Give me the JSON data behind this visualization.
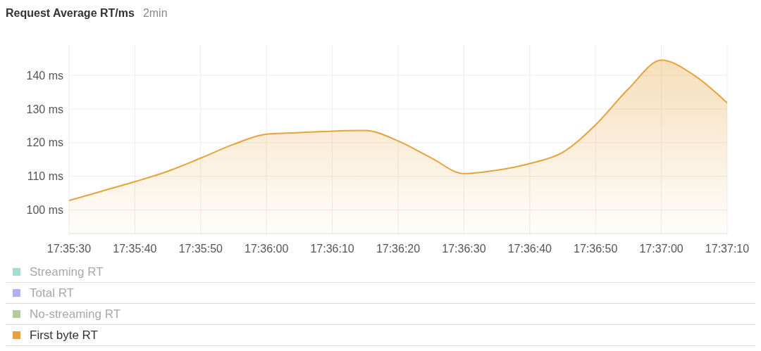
{
  "chart_data": {
    "type": "area",
    "title": "Request Average RT/ms",
    "subtitle": "2min",
    "x": [
      17.591667,
      17.593056,
      17.594444,
      17.595833,
      17.597222,
      17.598611,
      17.6,
      17.601389,
      17.602778,
      17.604167,
      17.605556,
      17.606944,
      17.608333,
      17.609722,
      17.611111,
      17.6125,
      17.613889,
      17.615278,
      17.616667,
      17.618056,
      17.619444
    ],
    "series": [
      {
        "name": "Streaming RT",
        "color": "#a6dccf",
        "values": [
          null,
          null,
          null,
          null,
          null,
          null,
          null,
          null,
          null,
          null,
          null,
          null,
          null,
          null,
          null,
          null,
          null,
          null,
          null,
          null,
          null
        ]
      },
      {
        "name": "Total RT",
        "color": "#b0b0f2",
        "values": [
          null,
          null,
          null,
          null,
          null,
          null,
          null,
          null,
          null,
          null,
          null,
          null,
          null,
          null,
          null,
          null,
          null,
          null,
          null,
          null,
          null
        ]
      },
      {
        "name": "No-streaming RT",
        "color": "#b3cd98",
        "values": [
          null,
          null,
          null,
          null,
          null,
          null,
          null,
          null,
          null,
          null,
          null,
          null,
          null,
          null,
          null,
          null,
          null,
          null,
          null,
          null,
          null
        ]
      },
      {
        "name": "First byte RT",
        "color": "#e6a23c",
        "values": [
          102.8,
          105.6,
          108.4,
          111.5,
          115.4,
          119.5,
          122.5,
          123.0,
          123.4,
          123.6,
          120.5,
          115.5,
          110.8,
          111.8,
          113.8,
          117.1,
          125.3,
          136.0,
          144.5,
          140.0,
          131.8
        ]
      }
    ],
    "xlim": [
      17.591667,
      17.619444
    ],
    "xticks": [
      {
        "value": 17.591667,
        "label": "17:35:30"
      },
      {
        "value": 17.594444,
        "label": "17:35:40"
      },
      {
        "value": 17.597222,
        "label": "17:35:50"
      },
      {
        "value": 17.6,
        "label": "17:36:00"
      },
      {
        "value": 17.602778,
        "label": "17:36:10"
      },
      {
        "value": 17.605556,
        "label": "17:36:20"
      },
      {
        "value": 17.608333,
        "label": "17:36:30"
      },
      {
        "value": 17.611111,
        "label": "17:36:40"
      },
      {
        "value": 17.613889,
        "label": "17:36:50"
      },
      {
        "value": 17.616667,
        "label": "17:37:00"
      },
      {
        "value": 17.619444,
        "label": "17:37:10"
      }
    ],
    "ylim": [
      93,
      149
    ],
    "yticks": [
      {
        "value": 100,
        "label": "100 ms"
      },
      {
        "value": 110,
        "label": "110 ms"
      },
      {
        "value": 120,
        "label": "120 ms"
      },
      {
        "value": 130,
        "label": "130 ms"
      },
      {
        "value": 140,
        "label": "140 ms"
      }
    ],
    "grid": true,
    "legend": "bottom",
    "marker": "none",
    "line_style": "solid"
  }
}
